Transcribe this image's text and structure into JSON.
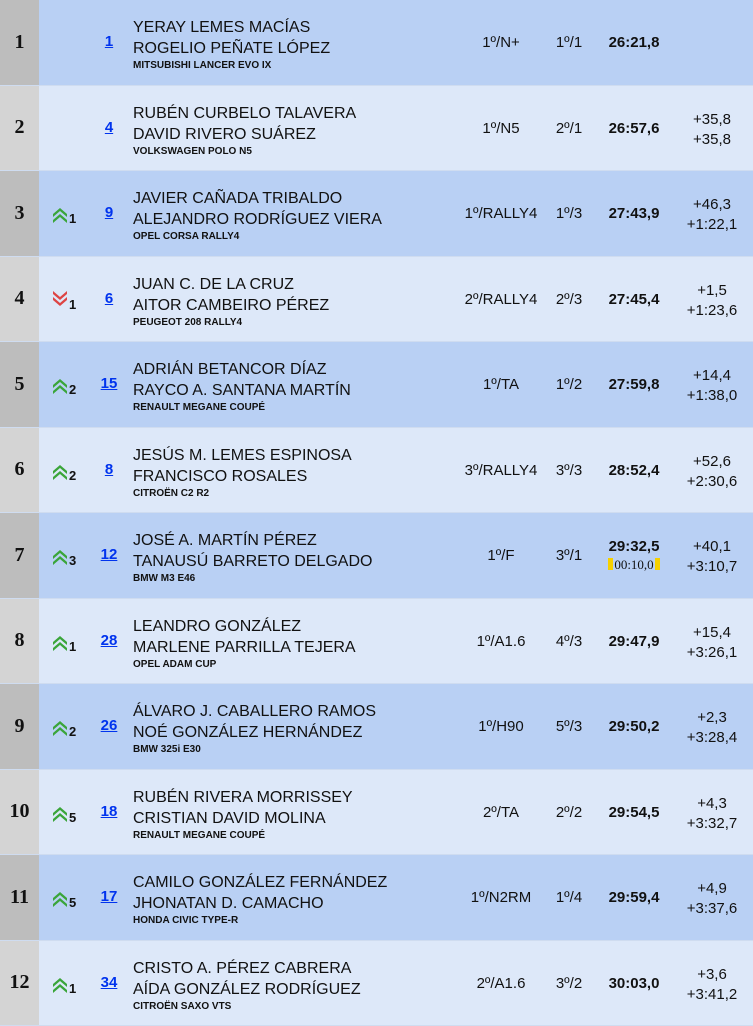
{
  "colors": {
    "up": "#3aa53a",
    "down": "#dd4444",
    "link": "#0033ee",
    "penalty": "#f5d000"
  },
  "rows": [
    {
      "pos": "1",
      "change": "",
      "dir": "",
      "number": "1",
      "driver": "YERAY LEMES MACÍAS",
      "codriver": "ROGELIO PEÑATE LÓPEZ",
      "car": "MITSUBISHI LANCER EVO IX",
      "class": "1º/N+",
      "group": "1º/1",
      "time": "26:21,8",
      "penalty": "",
      "gap_prev": "",
      "gap_leader": ""
    },
    {
      "pos": "2",
      "change": "",
      "dir": "",
      "number": "4",
      "driver": "RUBÉN CURBELO TALAVERA",
      "codriver": "DAVID RIVERO SUÁREZ",
      "car": "VOLKSWAGEN POLO N5",
      "class": "1º/N5",
      "group": "2º/1",
      "time": "26:57,6",
      "penalty": "",
      "gap_prev": "+35,8",
      "gap_leader": "+35,8"
    },
    {
      "pos": "3",
      "change": "1",
      "dir": "up",
      "number": "9",
      "driver": "JAVIER CAÑADA TRIBALDO",
      "codriver": "ALEJANDRO RODRÍGUEZ VIERA",
      "car": "OPEL CORSA RALLY4",
      "class": "1º/RALLY4",
      "group": "1º/3",
      "time": "27:43,9",
      "penalty": "",
      "gap_prev": "+46,3",
      "gap_leader": "+1:22,1"
    },
    {
      "pos": "4",
      "change": "1",
      "dir": "down",
      "number": "6",
      "driver": "JUAN C. DE LA CRUZ",
      "codriver": "AITOR CAMBEIRO PÉREZ",
      "car": "PEUGEOT 208 RALLY4",
      "class": "2º/RALLY4",
      "group": "2º/3",
      "time": "27:45,4",
      "penalty": "",
      "gap_prev": "+1,5",
      "gap_leader": "+1:23,6"
    },
    {
      "pos": "5",
      "change": "2",
      "dir": "up",
      "number": "15",
      "driver": "ADRIÁN BETANCOR DÍAZ",
      "codriver": "RAYCO A. SANTANA MARTÍN",
      "car": "RENAULT MEGANE COUPÉ",
      "class": "1º/TA",
      "group": "1º/2",
      "time": "27:59,8",
      "penalty": "",
      "gap_prev": "+14,4",
      "gap_leader": "+1:38,0"
    },
    {
      "pos": "6",
      "change": "2",
      "dir": "up",
      "number": "8",
      "driver": "JESÚS M. LEMES ESPINOSA",
      "codriver": "FRANCISCO ROSALES",
      "car": "CITROËN C2 R2",
      "class": "3º/RALLY4",
      "group": "3º/3",
      "time": "28:52,4",
      "penalty": "",
      "gap_prev": "+52,6",
      "gap_leader": "+2:30,6"
    },
    {
      "pos": "7",
      "change": "3",
      "dir": "up",
      "number": "12",
      "driver": "JOSÉ A. MARTÍN PÉREZ",
      "codriver": "TANAUSÚ BARRETO DELGADO",
      "car": "BMW M3 E46",
      "class": "1º/F",
      "group": "3º/1",
      "time": "29:32,5",
      "penalty": "00:10,0",
      "gap_prev": "+40,1",
      "gap_leader": "+3:10,7"
    },
    {
      "pos": "8",
      "change": "1",
      "dir": "up",
      "number": "28",
      "driver": "LEANDRO GONZÁLEZ",
      "codriver": "MARLENE PARRILLA TEJERA",
      "car": "OPEL ADAM CUP",
      "class": "1º/A1.6",
      "group": "4º/3",
      "time": "29:47,9",
      "penalty": "",
      "gap_prev": "+15,4",
      "gap_leader": "+3:26,1"
    },
    {
      "pos": "9",
      "change": "2",
      "dir": "up",
      "number": "26",
      "driver": "ÁLVARO J. CABALLERO RAMOS",
      "codriver": "NOÉ GONZÁLEZ HERNÁNDEZ",
      "car": "BMW 325i E30",
      "class": "1º/H90",
      "group": "5º/3",
      "time": "29:50,2",
      "penalty": "",
      "gap_prev": "+2,3",
      "gap_leader": "+3:28,4"
    },
    {
      "pos": "10",
      "change": "5",
      "dir": "up",
      "number": "18",
      "driver": "RUBÉN RIVERA MORRISSEY",
      "codriver": "CRISTIAN DAVID MOLINA",
      "car": "RENAULT MEGANE COUPÉ",
      "class": "2º/TA",
      "group": "2º/2",
      "time": "29:54,5",
      "penalty": "",
      "gap_prev": "+4,3",
      "gap_leader": "+3:32,7"
    },
    {
      "pos": "11",
      "change": "5",
      "dir": "up",
      "number": "17",
      "driver": "CAMILO GONZÁLEZ FERNÁNDEZ",
      "codriver": "JHONATAN D. CAMACHO",
      "car": "HONDA CIVIC TYPE-R",
      "class": "1º/N2RM",
      "group": "1º/4",
      "time": "29:59,4",
      "penalty": "",
      "gap_prev": "+4,9",
      "gap_leader": "+3:37,6"
    },
    {
      "pos": "12",
      "change": "1",
      "dir": "up",
      "number": "34",
      "driver": "CRISTO A. PÉREZ CABRERA",
      "codriver": "AÍDA GONZÁLEZ RODRÍGUEZ",
      "car": "CITROËN SAXO VTS",
      "class": "2º/A1.6",
      "group": "3º/2",
      "time": "30:03,0",
      "penalty": "",
      "gap_prev": "+3,6",
      "gap_leader": "+3:41,2"
    }
  ]
}
